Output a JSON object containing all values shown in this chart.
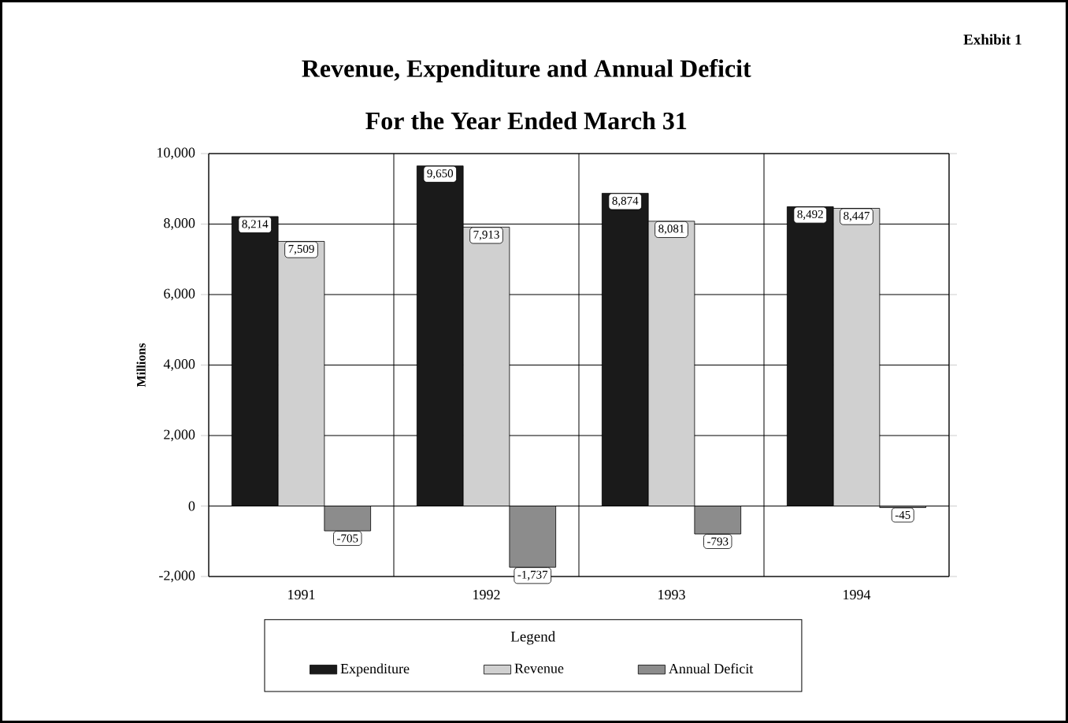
{
  "chart_data": {
    "type": "bar",
    "title": "Revenue, Expenditure and Annual Deficit",
    "subtitle": "For the Year Ended March 31",
    "ylabel": "Millions",
    "legend_title": "Legend",
    "annotations": [
      "Exhibit 1"
    ],
    "categories": [
      "1991",
      "1992",
      "1993",
      "1994"
    ],
    "series": [
      {
        "name": "Expenditure",
        "color": "#1a1a1a",
        "values": [
          8214,
          9650,
          8874,
          8492
        ],
        "value_labels": [
          "8,214",
          "9,650",
          "8,874",
          "8,492"
        ]
      },
      {
        "name": "Revenue",
        "color": "#d0d0d0",
        "values": [
          7509,
          7913,
          8081,
          8447
        ],
        "value_labels": [
          "7,509",
          "7,913",
          "8,081",
          "8,447"
        ]
      },
      {
        "name": "Annual Deficit",
        "color": "#8c8c8c",
        "values": [
          -705,
          -1737,
          -793,
          -45
        ],
        "value_labels": [
          "-705",
          "-1,737",
          "-793",
          "-45"
        ]
      }
    ],
    "ylim": [
      -2000,
      10000
    ],
    "yticks": [
      {
        "value": -2000,
        "label": "-2,000"
      },
      0,
      {
        "value": 2000,
        "label": "2,000"
      },
      {
        "value": 4000,
        "label": "4,000"
      },
      {
        "value": 6000,
        "label": "6,000"
      },
      {
        "value": 8000,
        "label": "8,000"
      },
      {
        "value": 10000,
        "label": "10,000"
      }
    ],
    "grid": true,
    "legend": "bottom"
  }
}
